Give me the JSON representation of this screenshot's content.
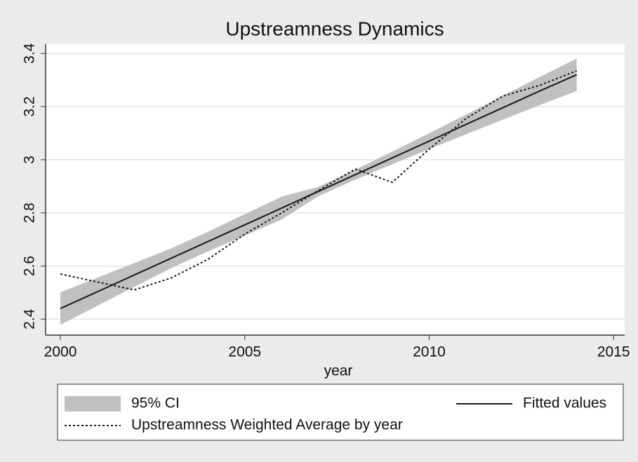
{
  "chart_data": {
    "type": "line",
    "title": "Upstreamness Dynamics",
    "x_label": "year",
    "x": [
      2000,
      2001,
      2002,
      2003,
      2004,
      2005,
      2006,
      2007,
      2008,
      2009,
      2010,
      2011,
      2012,
      2013,
      2014
    ],
    "series": [
      {
        "name": "95% CI",
        "color": "#c0c0c0",
        "style": "band",
        "lower": [
          2.379,
          2.45,
          2.521,
          2.592,
          2.655,
          2.715,
          2.775,
          2.8635,
          2.925,
          2.983,
          3.04,
          3.096,
          3.151,
          3.206,
          3.259
        ],
        "upper": [
          2.501,
          2.556,
          2.611,
          2.666,
          2.729,
          2.795,
          2.861,
          2.8985,
          2.963,
          3.031,
          3.1,
          3.17,
          3.241,
          3.312,
          3.381
        ]
      },
      {
        "name": "Fitted values",
        "color": "#1a1a1a",
        "style": "solid",
        "values": [
          2.44,
          2.503,
          2.566,
          2.629,
          2.692,
          2.755,
          2.818,
          2.881,
          2.944,
          3.007,
          3.07,
          3.133,
          3.196,
          3.259,
          3.32
        ]
      },
      {
        "name": "Upstreamness Weighted Average by year",
        "color": "#1a1a1a",
        "style": "dotted",
        "values": [
          2.57,
          2.54,
          2.51,
          2.555,
          2.625,
          2.72,
          2.8,
          2.885,
          2.965,
          2.915,
          3.04,
          3.155,
          3.24,
          3.28,
          3.335
        ]
      }
    ],
    "xlim": [
      1999.6,
      2015.3
    ],
    "xticks": [
      2000,
      2005,
      2010,
      2015
    ],
    "ylim": [
      2.34,
      3.435
    ],
    "yticks": [
      2.4,
      2.6,
      2.8,
      3,
      3.2,
      3.4
    ],
    "grid": true
  }
}
